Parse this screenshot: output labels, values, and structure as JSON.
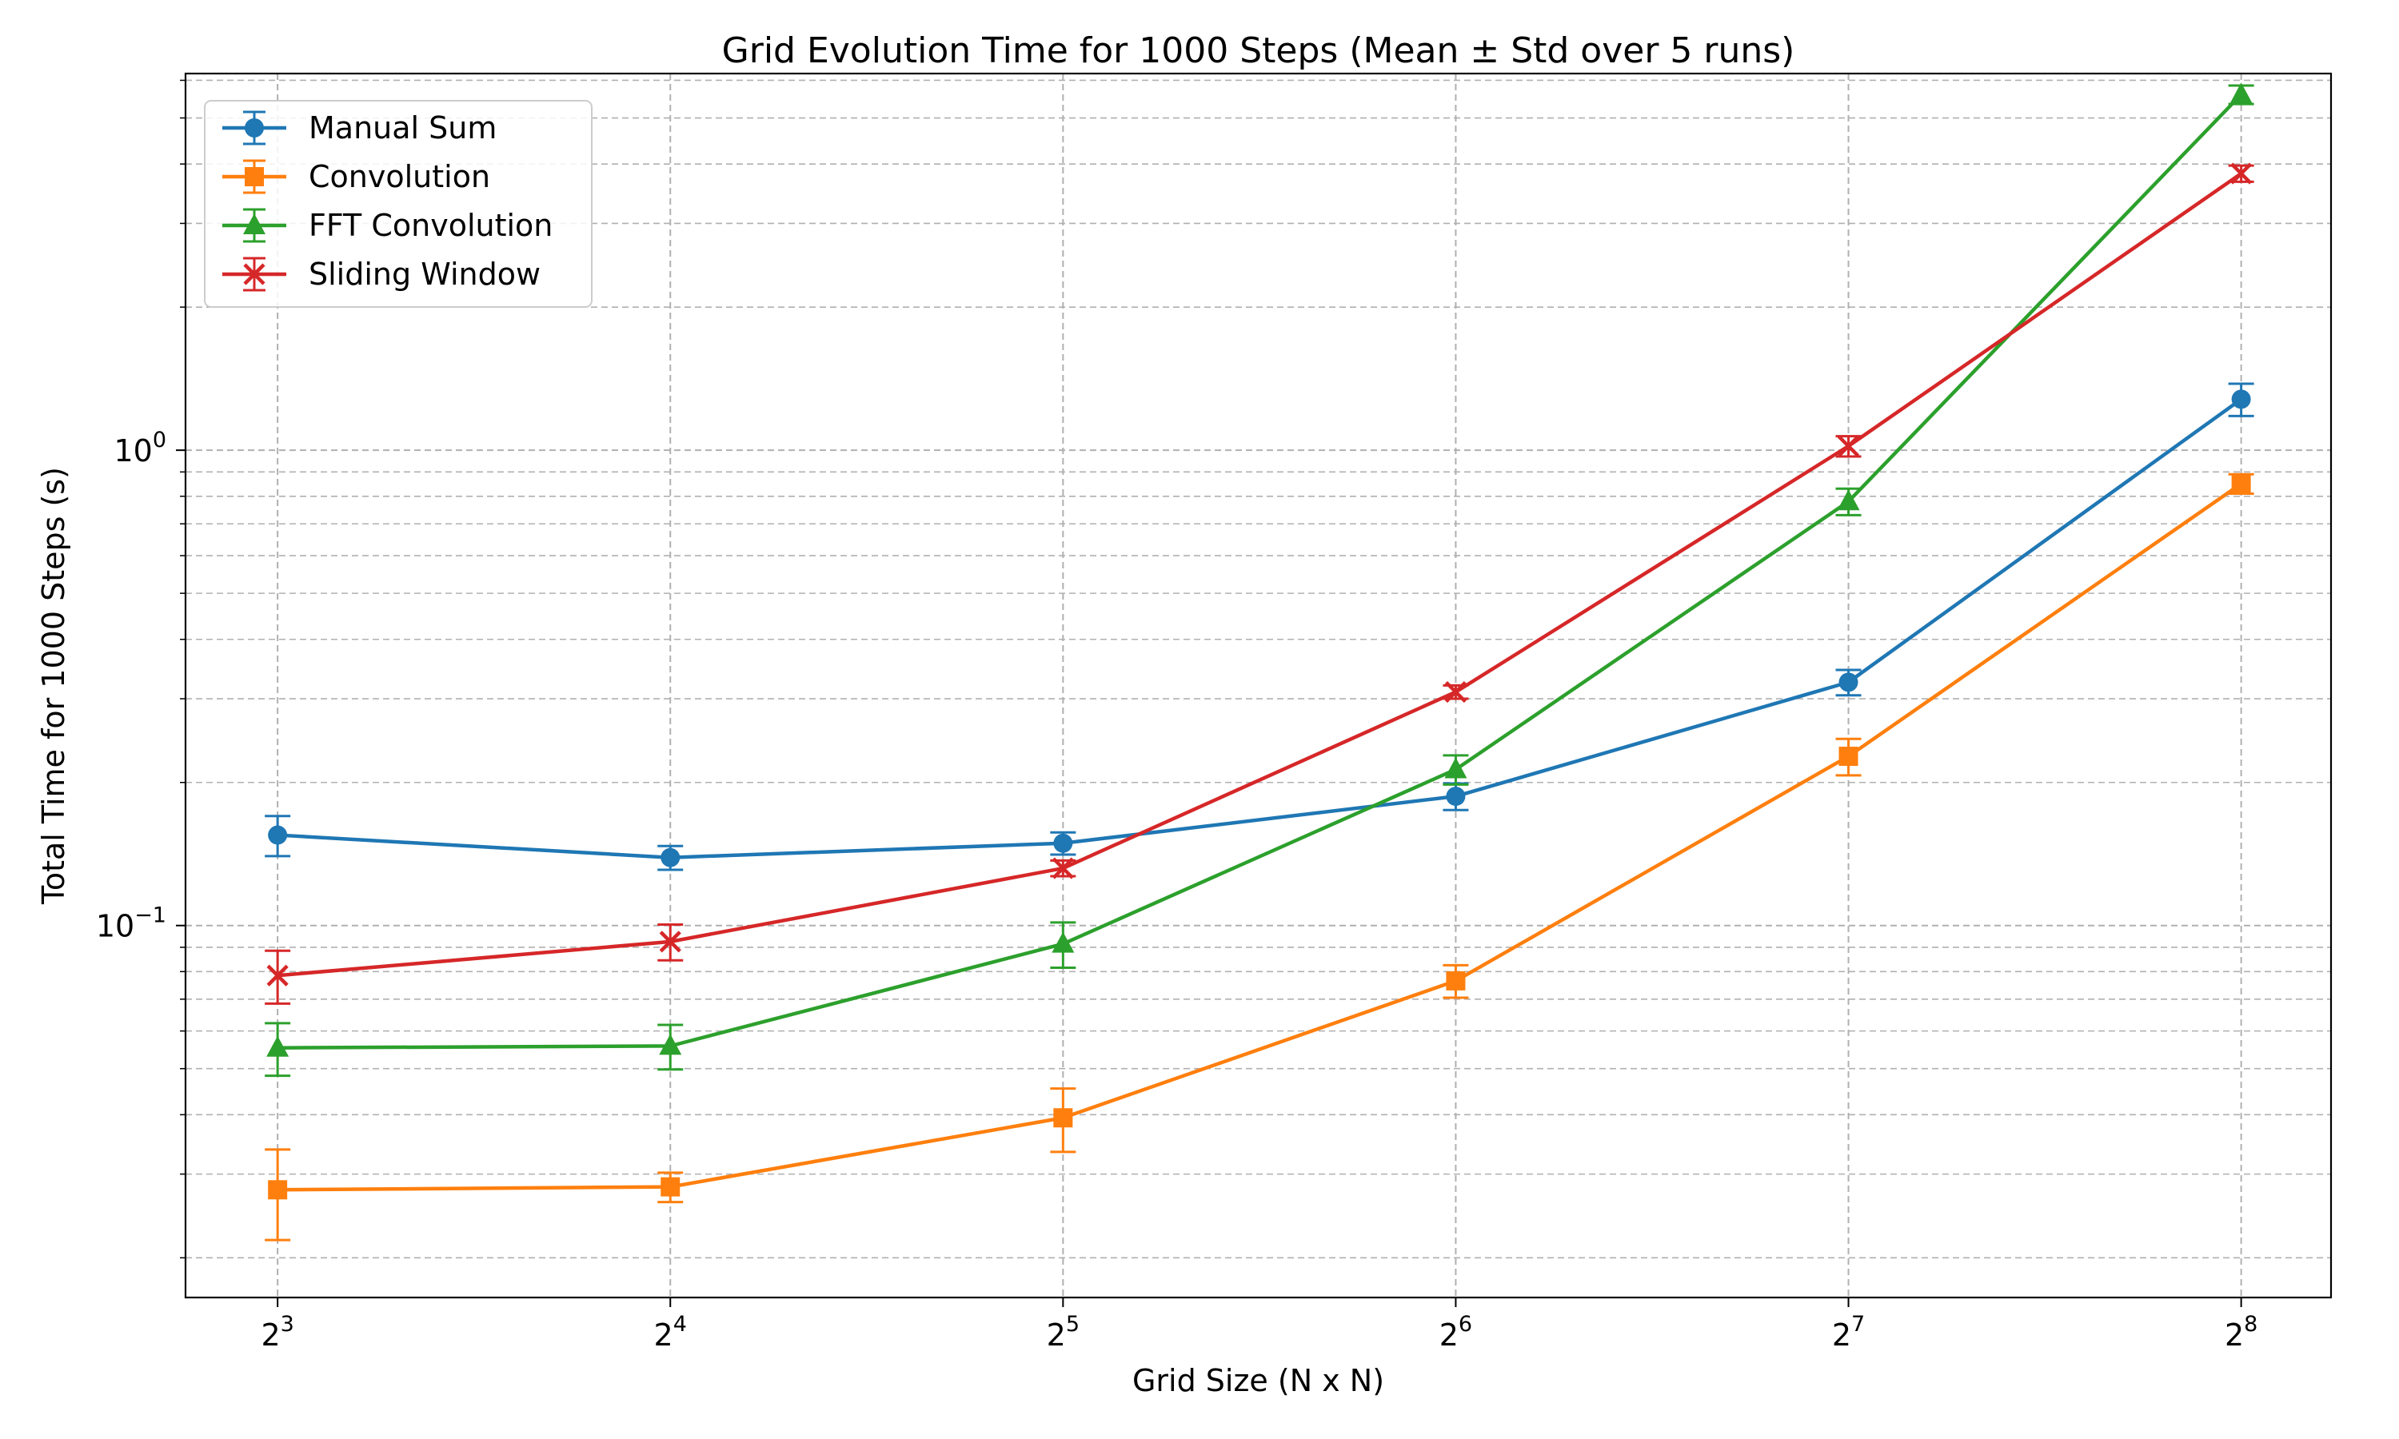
{
  "chart_data": {
    "type": "line",
    "title": "Grid Evolution Time for 1000 Steps (Mean ± Std over 5 runs)",
    "xlabel": "Grid Size (N x N)",
    "ylabel": "Total Time for 1000 Steps (s)",
    "x_scale": "log2",
    "y_scale": "log10",
    "x": [
      8,
      16,
      32,
      64,
      128,
      256
    ],
    "x_ticks": [
      {
        "base": "2",
        "exp": "3",
        "value": 8
      },
      {
        "base": "2",
        "exp": "4",
        "value": 16
      },
      {
        "base": "2",
        "exp": "5",
        "value": 32
      },
      {
        "base": "2",
        "exp": "6",
        "value": 64
      },
      {
        "base": "2",
        "exp": "7",
        "value": 128
      },
      {
        "base": "2",
        "exp": "8",
        "value": 256
      }
    ],
    "y_ticks": [
      {
        "base": "10",
        "exp": "−1",
        "value": 0.1
      },
      {
        "base": "10",
        "exp": "0",
        "value": 1
      }
    ],
    "xlim": [
      6.8,
      300
    ],
    "ylim": [
      0.0165,
      6.2
    ],
    "grid": true,
    "legend_position": "top-left",
    "series": [
      {
        "name": "Manual Sum",
        "color": "#1f77b4",
        "marker": "circle",
        "values": [
          0.155,
          0.139,
          0.149,
          0.187,
          0.325,
          1.28
        ],
        "errors": [
          0.015,
          0.008,
          0.008,
          0.012,
          0.02,
          0.1
        ]
      },
      {
        "name": "Convolution",
        "color": "#ff7f0e",
        "marker": "square",
        "values": [
          0.0278,
          0.0282,
          0.0394,
          0.0765,
          0.227,
          0.85
        ],
        "errors": [
          0.006,
          0.002,
          0.006,
          0.006,
          0.02,
          0.04
        ]
      },
      {
        "name": "FFT Convolution",
        "color": "#2ca02c",
        "marker": "triangle",
        "values": [
          0.0553,
          0.0558,
          0.0915,
          0.213,
          0.78,
          5.6
        ],
        "errors": [
          0.007,
          0.006,
          0.01,
          0.015,
          0.05,
          0.25
        ]
      },
      {
        "name": "Sliding Window",
        "color": "#d62728",
        "marker": "x",
        "values": [
          0.0785,
          0.0925,
          0.132,
          0.31,
          1.02,
          3.82
        ],
        "errors": [
          0.01,
          0.008,
          0.005,
          0.01,
          0.05,
          0.15
        ]
      }
    ]
  }
}
